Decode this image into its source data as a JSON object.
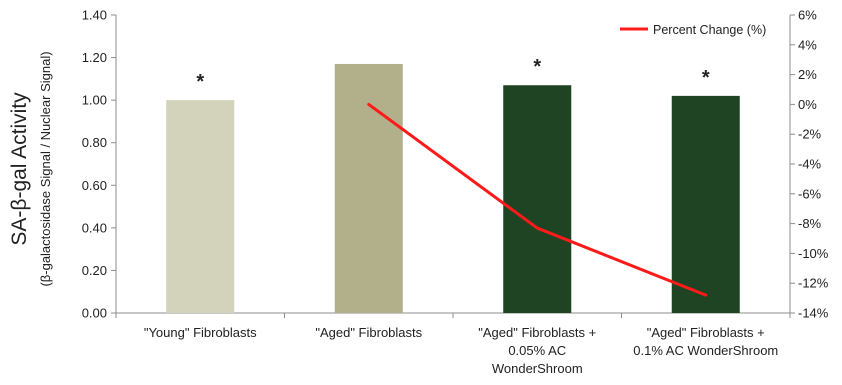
{
  "chart_data": {
    "type": "bar",
    "categories": [
      [
        "\"Young\" Fibroblasts"
      ],
      [
        "\"Aged\" Fibroblasts"
      ],
      [
        "\"Aged\" Fibroblasts +",
        "0.05% AC",
        "WonderShroom"
      ],
      [
        "\"Aged\" Fibroblasts +",
        "0.1% AC WonderShroom"
      ]
    ],
    "series": [
      {
        "type": "bar",
        "axis": "left",
        "values": [
          1.0,
          1.17,
          1.07,
          1.02
        ],
        "colors": [
          "#d3d3bc",
          "#b2b08b",
          "#1e4424",
          "#1e4424"
        ]
      },
      {
        "type": "line",
        "axis": "right",
        "name": "Percent Change (%)",
        "values": [
          null,
          0.0,
          -8.3,
          -12.8
        ],
        "color": "#ff1a1a"
      }
    ],
    "significance_markers": [
      "*",
      "",
      "*",
      "*"
    ],
    "ylabel": "SA-β-gal Activity",
    "ylabel_sub": "(β-galactosidase Signal / Nuclear Signal)",
    "y_left": {
      "lim": [
        0,
        1.4
      ],
      "ticks": [
        "0.00",
        "0.20",
        "0.40",
        "0.60",
        "0.80",
        "1.00",
        "1.20",
        "1.40"
      ]
    },
    "y_right": {
      "lim": [
        -14,
        6
      ],
      "ticks": [
        "-14%",
        "-12%",
        "-10%",
        "-8%",
        "-6%",
        "-4%",
        "-2%",
        "0%",
        "2%",
        "4%",
        "6%"
      ]
    },
    "legend": {
      "position": "top-right",
      "entries": [
        "Percent Change (%)"
      ]
    },
    "grid": false
  }
}
